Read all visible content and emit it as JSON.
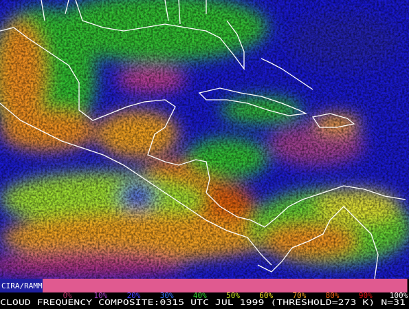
{
  "source_label": "CIRA/RAMM",
  "legend": [
    {
      "label": "0%",
      "color": "#b03060"
    },
    {
      "label": "10%",
      "color": "#a040c0"
    },
    {
      "label": "20%",
      "color": "#4040ff"
    },
    {
      "label": "30%",
      "color": "#3070ff"
    },
    {
      "label": "40%",
      "color": "#30d030"
    },
    {
      "label": "50%",
      "color": "#c0e020"
    },
    {
      "label": "60%",
      "color": "#f0e020"
    },
    {
      "label": "70%",
      "color": "#f0a020"
    },
    {
      "label": "80%",
      "color": "#f06010"
    },
    {
      "label": "90%",
      "color": "#e01010"
    },
    {
      "label": "100%",
      "color": "#ffffff"
    }
  ],
  "caption": "CLOUD FREQUENCY COMPOSITE:0315 UTC JUL 1999 (THRESHOLD=273 K) N=31"
}
